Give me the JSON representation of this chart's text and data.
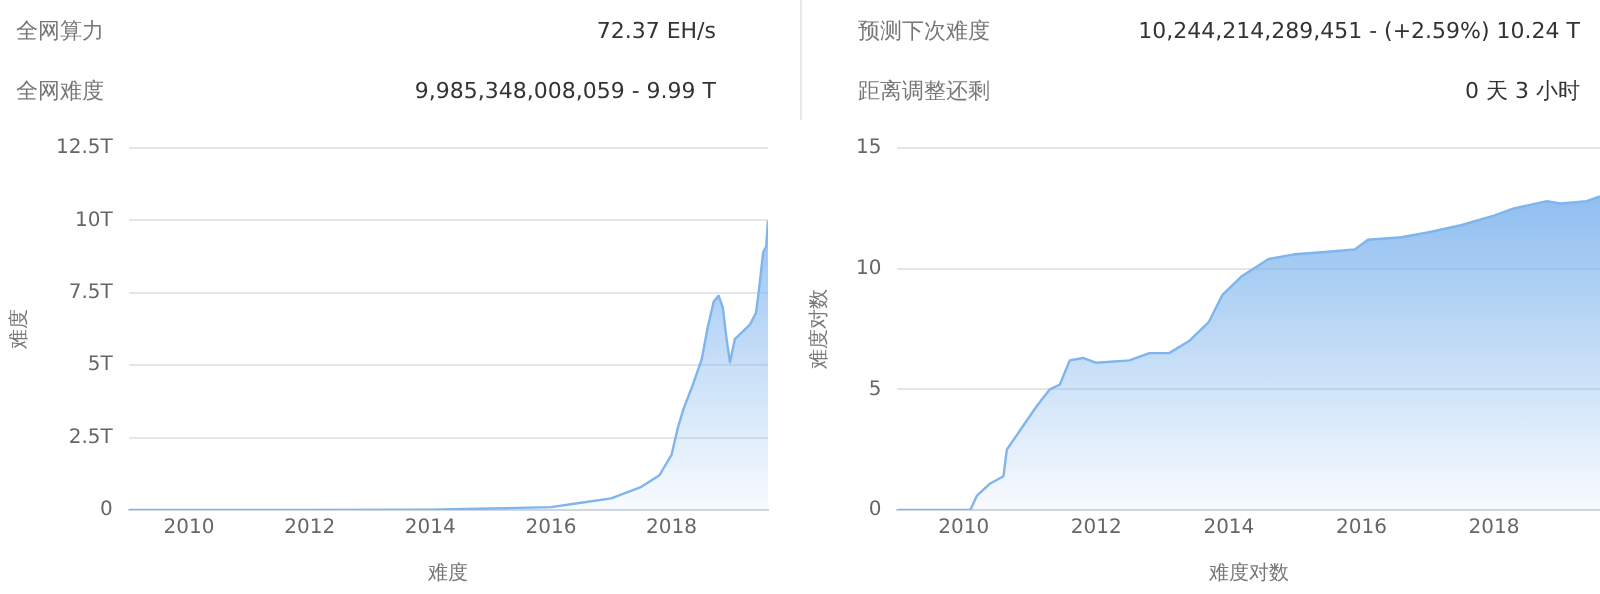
{
  "chart_data": [
    {
      "type": "other",
      "annotations": [
        "全网算力",
        "72.37 EH/s",
        "全网难度",
        "9,985,348,008,059 - 9.99 T",
        "预测下次难度",
        "10,244,214,289,451 - (+2.59%) 10.24 T",
        "距离调整还剩",
        "0 天 3 小时"
      ]
    },
    {
      "type": "area",
      "xlabel": "难度",
      "ylabel": "难度",
      "x": [
        2009,
        2012,
        2014,
        2015,
        2016,
        2016.5,
        2017,
        2017.5,
        2017.8,
        2018,
        2018.1,
        2018.2,
        2018.35,
        2018.5,
        2018.6,
        2018.7,
        2018.78,
        2018.85,
        2018.92,
        2018.97,
        2019.05,
        2019.15,
        2019.3,
        2019.4,
        2019.45,
        2019.52,
        2019.57,
        2019.6
      ],
      "series": [
        {
          "color": "#7fb5ee",
          "values": [
            0,
            0,
            0.01,
            0.05,
            0.1,
            0.25,
            0.4,
            0.8,
            1.2,
            1.9,
            2.8,
            3.5,
            4.3,
            5.2,
            6.3,
            7.2,
            7.4,
            7.0,
            5.8,
            5.1,
            5.9,
            6.1,
            6.4,
            6.8,
            7.6,
            8.9,
            9.1,
            9.99
          ]
        }
      ],
      "xlim": [
        2009,
        2019.6
      ],
      "xticks": [
        2010,
        2012,
        2014,
        2016,
        2018
      ],
      "ylim": [
        0,
        12.5
      ],
      "yticks": [
        {
          "value": 0,
          "label": "0"
        },
        {
          "value": 2.5,
          "label": "2.5T"
        },
        {
          "value": 5,
          "label": "5T"
        },
        {
          "value": 7.5,
          "label": "7.5T"
        },
        {
          "value": 10,
          "label": "10T"
        },
        {
          "value": 12.5,
          "label": "12.5T"
        }
      ],
      "grid": "y",
      "legend": false
    },
    {
      "type": "area",
      "xlabel": "难度对数",
      "ylabel": "难度对数",
      "x": [
        2009,
        2010.1,
        2010.2,
        2010.4,
        2010.6,
        2010.65,
        2010.9,
        2011.1,
        2011.3,
        2011.45,
        2011.6,
        2011.8,
        2012,
        2012.5,
        2012.8,
        2013.1,
        2013.4,
        2013.7,
        2013.9,
        2014.2,
        2014.6,
        2015,
        2015.5,
        2015.9,
        2016.1,
        2016.6,
        2017,
        2017.5,
        2018,
        2018.3,
        2018.8,
        2019,
        2019.4,
        2019.6
      ],
      "series": [
        {
          "color": "#7fb5ee",
          "values": [
            0,
            0,
            0.6,
            1.1,
            1.4,
            2.5,
            3.5,
            4.3,
            5.0,
            5.2,
            6.2,
            6.3,
            6.1,
            6.2,
            6.5,
            6.5,
            7.0,
            7.8,
            8.9,
            9.7,
            10.4,
            10.6,
            10.7,
            10.8,
            11.2,
            11.3,
            11.5,
            11.8,
            12.2,
            12.5,
            12.8,
            12.7,
            12.8,
            13.0
          ]
        }
      ],
      "xlim": [
        2009,
        2019.6
      ],
      "xticks": [
        2010,
        2012,
        2014,
        2016,
        2018
      ],
      "ylim": [
        0,
        15
      ],
      "yticks": [
        0,
        5,
        10,
        15
      ],
      "grid": "y",
      "legend": false
    }
  ]
}
